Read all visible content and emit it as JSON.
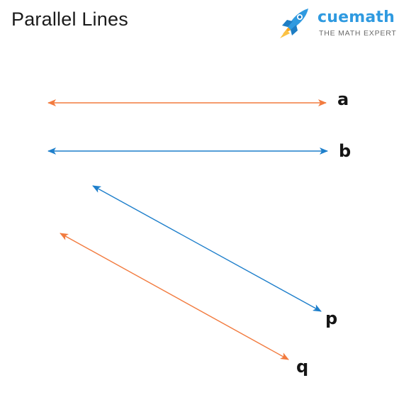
{
  "header": {
    "title": "Parallel Lines"
  },
  "logo": {
    "brand": "cuemath",
    "tagline": "THE MATH EXPERT",
    "icon": "rocket-icon",
    "brand_color": "#2f9ae0",
    "accent_color": "#f8a723"
  },
  "diagram": {
    "lines": [
      {
        "id": "a",
        "label": "a",
        "color": "#f27b3f"
      },
      {
        "id": "b",
        "label": "b",
        "color": "#1e7fcb"
      },
      {
        "id": "p",
        "label": "p",
        "color": "#1e7fcb"
      },
      {
        "id": "q",
        "label": "q",
        "color": "#f27b3f"
      }
    ]
  }
}
